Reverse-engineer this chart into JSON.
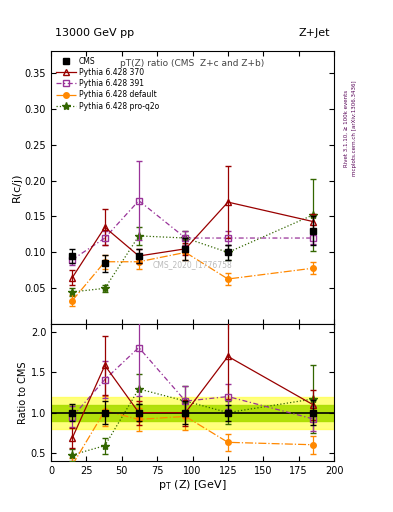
{
  "title_left": "13000 GeV pp",
  "title_right": "Z+Jet",
  "plot_title": "pT(Z) ratio (CMS  Z+c and Z+b)",
  "ylabel_main": "R(c/j)",
  "ylabel_ratio": "Ratio to CMS",
  "xlabel": "p_{T} (Z) [GeV]",
  "watermark": "CMS_2020_I1776758",
  "right_label": "Rivet 3.1.10, ≥ 100k events",
  "right_label2": "mcplots.cern.ch [arXiv:1306.3436]",
  "cms_x": [
    15,
    38,
    62,
    95,
    125,
    185
  ],
  "cms_y": [
    0.095,
    0.085,
    0.095,
    0.105,
    0.1,
    0.13
  ],
  "cms_yerr": [
    0.01,
    0.012,
    0.01,
    0.015,
    0.01,
    0.02
  ],
  "p370_x": [
    15,
    38,
    62,
    95,
    125,
    185
  ],
  "p370_y": [
    0.065,
    0.135,
    0.095,
    0.105,
    0.17,
    0.143
  ],
  "p370_yerr": [
    0.01,
    0.025,
    0.01,
    0.008,
    0.05,
    0.01
  ],
  "p391_x": [
    15,
    38,
    62,
    95,
    125,
    185
  ],
  "p391_y": [
    0.09,
    0.12,
    0.172,
    0.12,
    0.12,
    0.12
  ],
  "p391_yerr": [
    0.008,
    0.01,
    0.055,
    0.01,
    0.01,
    0.008
  ],
  "pdef_x": [
    15,
    38,
    62,
    95,
    125,
    185
  ],
  "pdef_y": [
    0.033,
    0.087,
    0.087,
    0.1,
    0.063,
    0.078
  ],
  "pdef_yerr": [
    0.008,
    0.01,
    0.01,
    0.01,
    0.008,
    0.008
  ],
  "pq2o_x": [
    15,
    38,
    62,
    95,
    125,
    185
  ],
  "pq2o_y": [
    0.045,
    0.05,
    0.123,
    0.12,
    0.1,
    0.152
  ],
  "pq2o_yerr": [
    0.005,
    0.005,
    0.012,
    0.01,
    0.01,
    0.05
  ],
  "color_cms": "#000000",
  "color_p370": "#990000",
  "color_p391": "#993399",
  "color_pdef": "#ff8800",
  "color_pq2o": "#336600",
  "ylim_main": [
    0.0,
    0.38
  ],
  "ylim_ratio": [
    0.4,
    2.1
  ],
  "xlim": [
    0,
    200
  ],
  "yticks_main": [
    0.05,
    0.1,
    0.15,
    0.2,
    0.25,
    0.3,
    0.35
  ],
  "yticks_ratio": [
    0.5,
    1.0,
    1.5,
    2.0
  ],
  "xticks": [
    0,
    25,
    50,
    75,
    100,
    125,
    150,
    175,
    200
  ]
}
